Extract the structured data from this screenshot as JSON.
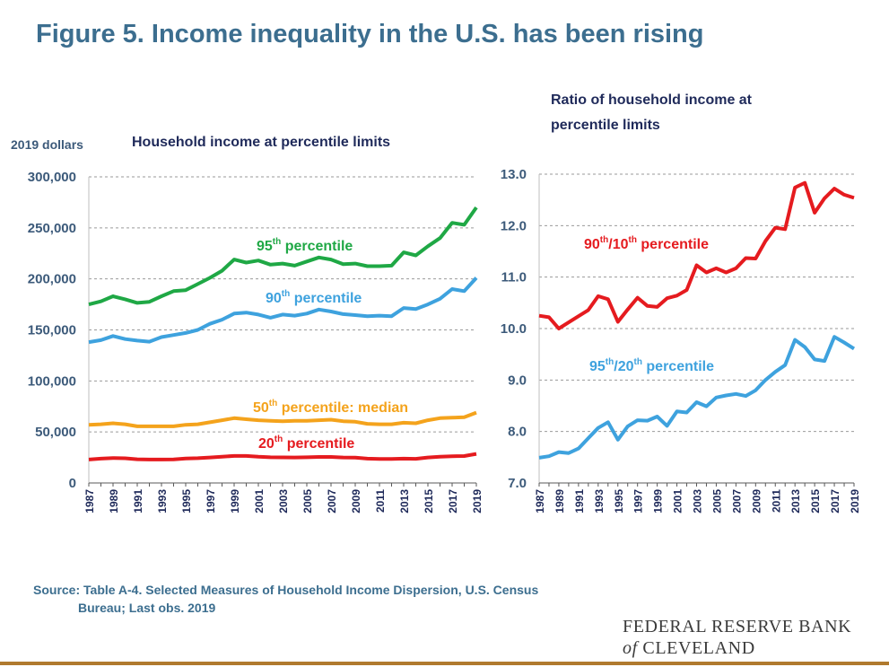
{
  "title": "Figure 5. Income inequality in the U.S. has been rising",
  "source_line1": "Source: Table A-4. Selected Measures of Household Income Dispersion, U.S. Census",
  "source_line2": "Bureau; Last obs. 2019",
  "logo_line1": "FEDERAL RESERVE BANK",
  "logo_of": "of",
  "logo_city": "CLEVELAND",
  "colors": {
    "title": "#3c6e8f",
    "green": "#1fa845",
    "blue": "#3ea2de",
    "orange": "#f4a31c",
    "red": "#e51b1f",
    "navy": "#1f2a5a",
    "axis": "#3c5a7a",
    "brand_bar": "#b07a2e"
  },
  "chart_data": [
    {
      "type": "line",
      "title": "Household income at percentile limits",
      "ylabel": "2019 dollars",
      "ylim": [
        0,
        300000
      ],
      "yticks": [
        "0",
        "50,000",
        "100,000",
        "150,000",
        "200,000",
        "250,000",
        "300,000"
      ],
      "grid": true,
      "x": [
        1987,
        1988,
        1989,
        1990,
        1991,
        1992,
        1993,
        1994,
        1995,
        1996,
        1997,
        1998,
        1999,
        2000,
        2001,
        2002,
        2003,
        2004,
        2005,
        2006,
        2007,
        2008,
        2009,
        2010,
        2011,
        2012,
        2013,
        2014,
        2015,
        2016,
        2017,
        2018,
        2019
      ],
      "xtick_labels": [
        "1987",
        "1989",
        "1991",
        "1993",
        "1995",
        "1997",
        "1999",
        "2001",
        "2003",
        "2005",
        "2007",
        "2009",
        "2011",
        "2013",
        "2015",
        "2017",
        "2019"
      ],
      "series": [
        {
          "name": "95th percentile",
          "color": "#1fa845",
          "values": [
            175000,
            178000,
            183000,
            180000,
            176500,
            177500,
            183000,
            188000,
            189000,
            195000,
            201000,
            208000,
            219000,
            216000,
            218000,
            214000,
            215000,
            213000,
            217000,
            221000,
            219000,
            214500,
            215000,
            212500,
            212500,
            213000,
            226000,
            223000,
            232000,
            240000,
            255000,
            253000,
            270000
          ]
        },
        {
          "name": "90th percentile",
          "color": "#3ea2de",
          "values": [
            138000,
            140000,
            144000,
            141000,
            139500,
            138500,
            143000,
            145000,
            147000,
            150000,
            156000,
            160000,
            166000,
            167000,
            165000,
            162000,
            165000,
            164000,
            166000,
            170000,
            168000,
            165500,
            164500,
            163500,
            164000,
            163500,
            171500,
            170500,
            175000,
            180500,
            190000,
            188000,
            201000
          ]
        },
        {
          "name": "50th percentile: median",
          "color": "#f4a31c",
          "values": [
            57000,
            57500,
            58500,
            57500,
            55500,
            55500,
            55500,
            55500,
            57000,
            57500,
            59500,
            61500,
            63500,
            62500,
            61500,
            61000,
            60500,
            61000,
            61000,
            61500,
            62000,
            60500,
            60000,
            58000,
            57500,
            57500,
            59000,
            58500,
            61500,
            63500,
            64000,
            64500,
            69000
          ]
        },
        {
          "name": "20th percentile",
          "color": "#e51b1f",
          "values": [
            23000,
            23800,
            24500,
            24200,
            23200,
            23000,
            23000,
            23100,
            24000,
            24300,
            25000,
            25800,
            26500,
            26500,
            25700,
            25200,
            25100,
            25000,
            25200,
            25500,
            25500,
            25000,
            24800,
            23800,
            23500,
            23500,
            23800,
            23700,
            25000,
            25700,
            26200,
            26400,
            28500
          ]
        }
      ],
      "labels": [
        {
          "text": "95",
          "sup": "th",
          "rest": " percentile",
          "series": 0
        },
        {
          "text": "90",
          "sup": "th",
          "rest": " percentile",
          "series": 1
        },
        {
          "text": "50",
          "sup": "th",
          "rest": " percentile: median",
          "series": 2
        },
        {
          "text": "20",
          "sup": "th",
          "rest": " percentile",
          "series": 3
        }
      ]
    },
    {
      "type": "line",
      "title_line1": "Ratio of household income at",
      "title_line2": "percentile limits",
      "ylim": [
        7.0,
        13.0
      ],
      "yticks": [
        "7.0",
        "8.0",
        "9.0",
        "10.0",
        "11.0",
        "12.0",
        "13.0"
      ],
      "grid": true,
      "x": [
        1987,
        1988,
        1989,
        1990,
        1991,
        1992,
        1993,
        1994,
        1995,
        1996,
        1997,
        1998,
        1999,
        2000,
        2001,
        2002,
        2003,
        2004,
        2005,
        2006,
        2007,
        2008,
        2009,
        2010,
        2011,
        2012,
        2013,
        2014,
        2015,
        2016,
        2017,
        2018,
        2019
      ],
      "xtick_labels": [
        "1987",
        "1989",
        "1991",
        "1993",
        "1995",
        "1997",
        "1999",
        "2001",
        "2003",
        "2005",
        "2007",
        "2009",
        "2011",
        "2013",
        "2015",
        "2017",
        "2019"
      ],
      "series": [
        {
          "name": "90th/10th percentile",
          "color": "#e51b1f",
          "values": [
            10.25,
            10.22,
            10.0,
            10.12,
            10.24,
            10.36,
            10.63,
            10.57,
            10.13,
            10.37,
            10.6,
            10.44,
            10.42,
            10.59,
            10.64,
            10.75,
            11.23,
            11.09,
            11.17,
            11.09,
            11.17,
            11.37,
            11.36,
            11.7,
            11.96,
            11.93,
            12.74,
            12.83,
            12.25,
            12.53,
            12.72,
            12.6,
            12.54
          ]
        },
        {
          "name": "95th/20th percentile",
          "color": "#3ea2de",
          "values": [
            7.49,
            7.52,
            7.6,
            7.58,
            7.67,
            7.87,
            8.07,
            8.18,
            7.84,
            8.1,
            8.22,
            8.21,
            8.29,
            8.11,
            8.39,
            8.37,
            8.57,
            8.49,
            8.66,
            8.7,
            8.73,
            8.69,
            8.8,
            9.0,
            9.16,
            9.29,
            9.78,
            9.64,
            9.4,
            9.37,
            9.84,
            9.73,
            9.61
          ]
        }
      ],
      "labels": [
        {
          "text": "90",
          "sup": "th",
          "mid": "/10",
          "sup2": "th",
          "rest": " percentile",
          "series": 0
        },
        {
          "text": "95",
          "sup": "th",
          "mid": "/20",
          "sup2": "th",
          "rest": " percentile",
          "series": 1
        }
      ]
    }
  ]
}
